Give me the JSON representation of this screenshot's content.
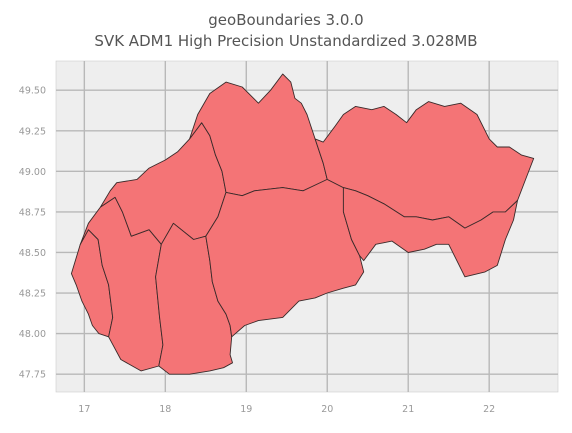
{
  "title": {
    "line1": "geoBoundaries 3.0.0",
    "line2": "SVK ADM1 High Precision Unstandardized 3.028MB"
  },
  "colors": {
    "plot_background": "#EEEEEE",
    "grid": "#B8B8B8",
    "region_fill": "#F47476",
    "region_stroke": "#3A2A2A"
  },
  "chart_data": {
    "type": "map",
    "country": "SVK",
    "admin_level": "ADM1",
    "xlim": [
      16.65,
      22.85
    ],
    "ylim": [
      47.64,
      49.68
    ],
    "x_ticks": [
      17,
      18,
      19,
      20,
      21,
      22
    ],
    "y_ticks": [
      47.75,
      48.0,
      48.25,
      48.5,
      48.75,
      49.0,
      49.25,
      49.5
    ],
    "x_tick_labels": [
      "17",
      "18",
      "19",
      "20",
      "21",
      "22"
    ],
    "y_tick_labels": [
      "47.75",
      "48.00",
      "48.25",
      "48.50",
      "48.75",
      "49.00",
      "49.25",
      "49.50"
    ],
    "grid": true,
    "regions": [
      {
        "id": "bratislava",
        "coords": [
          [
            16.84,
            48.37
          ],
          [
            16.95,
            48.55
          ],
          [
            17.05,
            48.64
          ],
          [
            17.17,
            48.58
          ],
          [
            17.22,
            48.42
          ],
          [
            17.3,
            48.3
          ],
          [
            17.35,
            48.1
          ],
          [
            17.3,
            47.98
          ],
          [
            17.18,
            48.0
          ],
          [
            17.1,
            48.05
          ],
          [
            17.05,
            48.12
          ],
          [
            16.97,
            48.2
          ],
          [
            16.9,
            48.3
          ]
        ]
      },
      {
        "id": "trnava",
        "coords": [
          [
            16.95,
            48.55
          ],
          [
            17.05,
            48.68
          ],
          [
            17.2,
            48.78
          ],
          [
            17.38,
            48.84
          ],
          [
            17.47,
            48.75
          ],
          [
            17.58,
            48.6
          ],
          [
            17.8,
            48.64
          ],
          [
            17.95,
            48.55
          ],
          [
            17.88,
            48.35
          ],
          [
            17.93,
            48.1
          ],
          [
            17.97,
            47.93
          ],
          [
            17.92,
            47.8
          ],
          [
            17.7,
            47.77
          ],
          [
            17.45,
            47.84
          ],
          [
            17.3,
            47.98
          ],
          [
            17.35,
            48.1
          ],
          [
            17.3,
            48.3
          ],
          [
            17.22,
            48.42
          ],
          [
            17.17,
            48.58
          ],
          [
            17.05,
            48.64
          ]
        ]
      },
      {
        "id": "trencin",
        "coords": [
          [
            17.2,
            48.78
          ],
          [
            17.32,
            48.88
          ],
          [
            17.4,
            48.93
          ],
          [
            17.65,
            48.95
          ],
          [
            17.8,
            49.02
          ],
          [
            18.0,
            49.07
          ],
          [
            18.15,
            49.12
          ],
          [
            18.3,
            49.2
          ],
          [
            18.45,
            49.3
          ],
          [
            18.55,
            49.22
          ],
          [
            18.62,
            49.1
          ],
          [
            18.7,
            49.0
          ],
          [
            18.75,
            48.87
          ],
          [
            18.65,
            48.72
          ],
          [
            18.5,
            48.6
          ],
          [
            18.35,
            48.58
          ],
          [
            18.1,
            48.68
          ],
          [
            17.95,
            48.55
          ],
          [
            17.8,
            48.64
          ],
          [
            17.58,
            48.6
          ],
          [
            17.47,
            48.75
          ],
          [
            17.38,
            48.84
          ]
        ]
      },
      {
        "id": "nitra",
        "coords": [
          [
            17.95,
            48.55
          ],
          [
            18.1,
            48.68
          ],
          [
            18.35,
            48.58
          ],
          [
            18.5,
            48.6
          ],
          [
            18.55,
            48.45
          ],
          [
            18.58,
            48.32
          ],
          [
            18.65,
            48.2
          ],
          [
            18.75,
            48.12
          ],
          [
            18.8,
            48.05
          ],
          [
            18.82,
            47.98
          ],
          [
            18.8,
            47.87
          ],
          [
            18.83,
            47.82
          ],
          [
            18.72,
            47.79
          ],
          [
            18.55,
            47.77
          ],
          [
            18.3,
            47.75
          ],
          [
            18.05,
            47.75
          ],
          [
            17.92,
            47.8
          ],
          [
            17.97,
            47.93
          ],
          [
            17.93,
            48.1
          ],
          [
            17.88,
            48.35
          ]
        ]
      },
      {
        "id": "zilina",
        "coords": [
          [
            18.45,
            49.3
          ],
          [
            18.3,
            49.2
          ],
          [
            18.4,
            49.35
          ],
          [
            18.55,
            49.48
          ],
          [
            18.75,
            49.55
          ],
          [
            18.95,
            49.52
          ],
          [
            19.15,
            49.42
          ],
          [
            19.3,
            49.5
          ],
          [
            19.45,
            49.6
          ],
          [
            19.55,
            49.55
          ],
          [
            19.6,
            49.45
          ],
          [
            19.68,
            49.42
          ],
          [
            19.75,
            49.35
          ],
          [
            19.85,
            49.2
          ],
          [
            19.95,
            49.05
          ],
          [
            20.0,
            48.95
          ],
          [
            19.85,
            48.9
          ],
          [
            19.7,
            48.88
          ],
          [
            19.45,
            48.9
          ],
          [
            19.1,
            48.88
          ],
          [
            18.95,
            48.85
          ],
          [
            18.75,
            48.87
          ],
          [
            18.7,
            49.0
          ],
          [
            18.62,
            49.1
          ],
          [
            18.55,
            49.22
          ]
        ]
      },
      {
        "id": "banska_bystrica",
        "coords": [
          [
            18.75,
            48.87
          ],
          [
            18.95,
            48.85
          ],
          [
            19.1,
            48.88
          ],
          [
            19.45,
            48.9
          ],
          [
            19.7,
            48.88
          ],
          [
            20.0,
            48.95
          ],
          [
            20.2,
            48.9
          ],
          [
            20.2,
            48.75
          ],
          [
            20.3,
            48.58
          ],
          [
            20.4,
            48.48
          ],
          [
            20.45,
            48.38
          ],
          [
            20.35,
            48.3
          ],
          [
            20.2,
            48.28
          ],
          [
            20.0,
            48.25
          ],
          [
            19.85,
            48.22
          ],
          [
            19.65,
            48.2
          ],
          [
            19.45,
            48.1
          ],
          [
            19.15,
            48.08
          ],
          [
            18.98,
            48.05
          ],
          [
            18.82,
            47.98
          ],
          [
            18.8,
            48.05
          ],
          [
            18.75,
            48.12
          ],
          [
            18.65,
            48.2
          ],
          [
            18.58,
            48.32
          ],
          [
            18.55,
            48.45
          ],
          [
            18.5,
            48.6
          ],
          [
            18.65,
            48.72
          ]
        ]
      },
      {
        "id": "presov",
        "coords": [
          [
            19.95,
            49.05
          ],
          [
            19.85,
            49.2
          ],
          [
            19.95,
            49.18
          ],
          [
            20.1,
            49.28
          ],
          [
            20.2,
            49.35
          ],
          [
            20.35,
            49.4
          ],
          [
            20.55,
            49.38
          ],
          [
            20.7,
            49.4
          ],
          [
            20.85,
            49.35
          ],
          [
            20.98,
            49.3
          ],
          [
            21.1,
            49.38
          ],
          [
            21.25,
            49.43
          ],
          [
            21.45,
            49.4
          ],
          [
            21.65,
            49.42
          ],
          [
            21.85,
            49.35
          ],
          [
            22.0,
            49.2
          ],
          [
            22.1,
            49.15
          ],
          [
            22.25,
            49.15
          ],
          [
            22.4,
            49.1
          ],
          [
            22.55,
            49.08
          ],
          [
            22.45,
            48.95
          ],
          [
            22.35,
            48.82
          ],
          [
            22.2,
            48.75
          ],
          [
            22.05,
            48.75
          ],
          [
            21.9,
            48.7
          ],
          [
            21.7,
            48.65
          ],
          [
            21.5,
            48.72
          ],
          [
            21.3,
            48.7
          ],
          [
            21.1,
            48.72
          ],
          [
            20.95,
            48.72
          ],
          [
            20.7,
            48.8
          ],
          [
            20.5,
            48.85
          ],
          [
            20.35,
            48.88
          ],
          [
            20.2,
            48.9
          ],
          [
            20.0,
            48.95
          ]
        ]
      },
      {
        "id": "kosice",
        "coords": [
          [
            20.2,
            48.9
          ],
          [
            20.35,
            48.88
          ],
          [
            20.5,
            48.85
          ],
          [
            20.7,
            48.8
          ],
          [
            20.95,
            48.72
          ],
          [
            21.1,
            48.72
          ],
          [
            21.3,
            48.7
          ],
          [
            21.5,
            48.72
          ],
          [
            21.7,
            48.65
          ],
          [
            21.9,
            48.7
          ],
          [
            22.05,
            48.75
          ],
          [
            22.2,
            48.75
          ],
          [
            22.35,
            48.82
          ],
          [
            22.3,
            48.7
          ],
          [
            22.2,
            48.58
          ],
          [
            22.1,
            48.42
          ],
          [
            21.95,
            48.38
          ],
          [
            21.7,
            48.35
          ],
          [
            21.5,
            48.55
          ],
          [
            21.35,
            48.55
          ],
          [
            21.2,
            48.52
          ],
          [
            21.0,
            48.5
          ],
          [
            20.8,
            48.57
          ],
          [
            20.6,
            48.55
          ],
          [
            20.45,
            48.45
          ],
          [
            20.4,
            48.48
          ],
          [
            20.3,
            48.58
          ],
          [
            20.2,
            48.75
          ]
        ]
      }
    ]
  }
}
